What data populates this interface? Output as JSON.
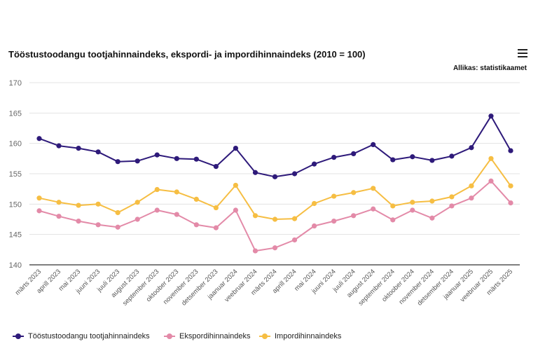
{
  "chart": {
    "title": "Tööstustoodangu tootjahinnaindeks, ekspordi- ja impordihinnaindeks (2010 = 100)",
    "source": "Allikas: statistikaamet"
  },
  "chart_data": {
    "type": "line",
    "title": "Tööstustoodangu tootjahinnaindeks, ekspordi- ja impordihinnaindeks (2010 = 100)",
    "xlabel": "",
    "ylabel": "",
    "ylim": [
      140,
      170
    ],
    "yticks": [
      140,
      145,
      150,
      155,
      160,
      165,
      170
    ],
    "grid": true,
    "legend_position": "bottom",
    "categories": [
      "märts 2023",
      "aprill 2023",
      "mai 2023",
      "juuni 2023",
      "juuli 2023",
      "august 2023",
      "september 2023",
      "oktoober 2023",
      "november 2023",
      "detsember 2023",
      "jaanuar 2024",
      "veebruar 2024",
      "märts 2024",
      "aprill 2024",
      "mai 2024",
      "juuni 2024",
      "juuli 2024",
      "august 2024",
      "september 2024",
      "oktoober 2024",
      "november 2024",
      "detsember 2024",
      "jaanuar 2025",
      "veebruar 2025",
      "märts 2025"
    ],
    "series": [
      {
        "name": "Tööstustoodangu tootjahinnaindeks",
        "color": "#2e1a7a",
        "values": [
          160.8,
          159.6,
          159.2,
          158.6,
          157.0,
          157.1,
          158.1,
          157.5,
          157.4,
          156.2,
          159.2,
          155.2,
          154.5,
          155.0,
          156.6,
          157.7,
          158.3,
          159.8,
          157.3,
          157.8,
          157.2,
          157.9,
          159.3,
          164.5,
          158.8
        ]
      },
      {
        "name": "Ekspordihinnaindeks",
        "color": "#e38aa8",
        "values": [
          148.9,
          148.0,
          147.2,
          146.6,
          146.2,
          147.5,
          149.0,
          148.3,
          146.6,
          146.1,
          149.0,
          142.3,
          142.8,
          144.1,
          146.4,
          147.2,
          148.1,
          149.2,
          147.4,
          149.0,
          147.7,
          149.7,
          151.0,
          153.8,
          150.2
        ]
      },
      {
        "name": "Impordihinnaindeks",
        "color": "#f6be43",
        "values": [
          151.0,
          150.3,
          149.8,
          150.0,
          148.6,
          150.3,
          152.4,
          152.0,
          150.8,
          149.4,
          153.1,
          148.1,
          147.5,
          147.6,
          150.1,
          151.3,
          151.9,
          152.6,
          149.7,
          150.3,
          150.5,
          151.2,
          153.0,
          157.5,
          153.0
        ]
      }
    ]
  }
}
